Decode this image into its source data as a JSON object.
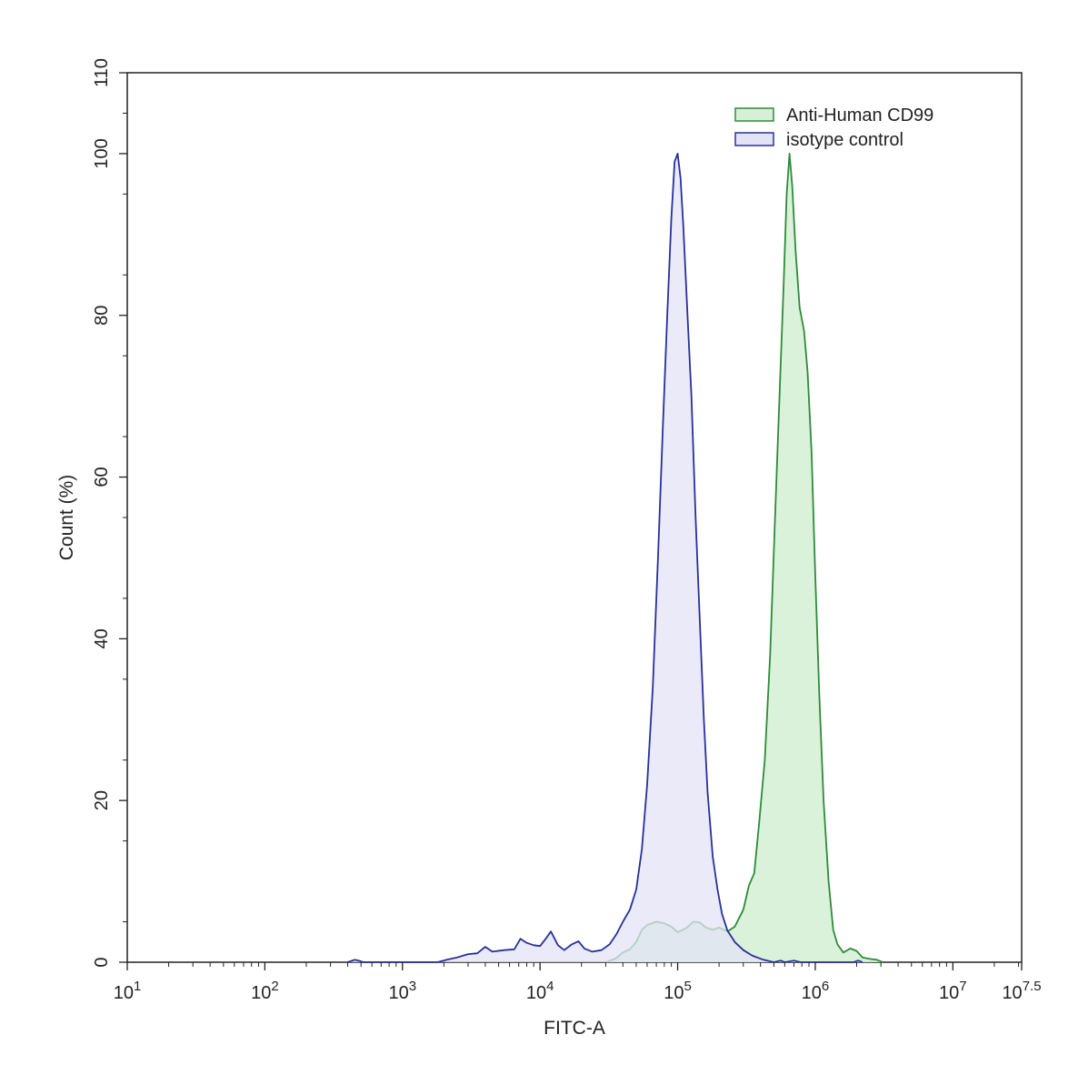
{
  "chart_data": {
    "type": "area",
    "title": "",
    "xlabel": "FITC-A",
    "ylabel": "Count  (%)",
    "x_scale": "log10",
    "xlim": [
      10,
      31622777
    ],
    "ylim": [
      0,
      110
    ],
    "x_ticks": [
      {
        "value": 10,
        "base": "10",
        "exp": "1"
      },
      {
        "value": 100,
        "base": "10",
        "exp": "2"
      },
      {
        "value": 1000,
        "base": "10",
        "exp": "3"
      },
      {
        "value": 10000,
        "base": "10",
        "exp": "4"
      },
      {
        "value": 100000,
        "base": "10",
        "exp": "5"
      },
      {
        "value": 1000000,
        "base": "10",
        "exp": "6"
      },
      {
        "value": 10000000,
        "base": "10",
        "exp": "7"
      },
      {
        "value": 31622777,
        "base": "10",
        "exp": "7.5"
      }
    ],
    "y_ticks": [
      "0",
      "20",
      "40",
      "60",
      "80",
      "100",
      "110"
    ],
    "grid": false,
    "legend_position": "top-right",
    "series": [
      {
        "name": "Anti-Human CD99",
        "line_color": "#2e8b3a",
        "fill_color": "#d6efd6",
        "points": [
          [
            30000,
            0
          ],
          [
            35000,
            0.4
          ],
          [
            40000,
            1.2
          ],
          [
            45000,
            1.6
          ],
          [
            50000,
            2.5
          ],
          [
            55000,
            4.0
          ],
          [
            60000,
            4.6
          ],
          [
            70000,
            5.0
          ],
          [
            80000,
            4.8
          ],
          [
            90000,
            4.4
          ],
          [
            100000,
            3.7
          ],
          [
            115000,
            4.2
          ],
          [
            130000,
            5.0
          ],
          [
            145000,
            4.9
          ],
          [
            160000,
            4.3
          ],
          [
            180000,
            4.0
          ],
          [
            200000,
            4.3
          ],
          [
            230000,
            3.8
          ],
          [
            260000,
            4.4
          ],
          [
            300000,
            6.5
          ],
          [
            330000,
            9.5
          ],
          [
            360000,
            11
          ],
          [
            390000,
            17
          ],
          [
            430000,
            25
          ],
          [
            470000,
            38
          ],
          [
            510000,
            55
          ],
          [
            550000,
            70
          ],
          [
            590000,
            84
          ],
          [
            620000,
            95
          ],
          [
            650000,
            100
          ],
          [
            680000,
            96
          ],
          [
            720000,
            88
          ],
          [
            770000,
            81
          ],
          [
            830000,
            78
          ],
          [
            880000,
            73
          ],
          [
            940000,
            63
          ],
          [
            1000000,
            48
          ],
          [
            1070000,
            33
          ],
          [
            1150000,
            20
          ],
          [
            1250000,
            10
          ],
          [
            1350000,
            4
          ],
          [
            1450000,
            2.2
          ],
          [
            1600000,
            1.2
          ],
          [
            1800000,
            1.7
          ],
          [
            2000000,
            1.4
          ],
          [
            2200000,
            0.6
          ],
          [
            2500000,
            0.4
          ],
          [
            2800000,
            0.3
          ],
          [
            3100000,
            0
          ]
        ]
      },
      {
        "name": "isotype control",
        "line_color": "#28309a",
        "fill_color": "#e3e3f6",
        "points": [
          [
            400,
            0
          ],
          [
            450,
            0.3
          ],
          [
            480,
            0.2
          ],
          [
            520,
            0
          ],
          [
            1800,
            0
          ],
          [
            2100,
            0.3
          ],
          [
            2500,
            0.6
          ],
          [
            3000,
            1.0
          ],
          [
            3500,
            1.1
          ],
          [
            4000,
            1.9
          ],
          [
            4500,
            1.3
          ],
          [
            5500,
            1.5
          ],
          [
            6500,
            1.6
          ],
          [
            7200,
            2.9
          ],
          [
            8000,
            2.4
          ],
          [
            9000,
            2.1
          ],
          [
            10000,
            2.0
          ],
          [
            11000,
            2.9
          ],
          [
            12000,
            3.8
          ],
          [
            13500,
            2.1
          ],
          [
            15000,
            1.5
          ],
          [
            17000,
            2.2
          ],
          [
            19000,
            2.6
          ],
          [
            21000,
            1.7
          ],
          [
            24000,
            1.3
          ],
          [
            28000,
            1.5
          ],
          [
            32000,
            2.2
          ],
          [
            36000,
            3.5
          ],
          [
            40000,
            5.0
          ],
          [
            45000,
            6.5
          ],
          [
            50000,
            9.0
          ],
          [
            55000,
            14
          ],
          [
            60000,
            22
          ],
          [
            66000,
            34
          ],
          [
            72000,
            50
          ],
          [
            78000,
            66
          ],
          [
            84000,
            80
          ],
          [
            90000,
            92
          ],
          [
            95000,
            99
          ],
          [
            100000,
            100
          ],
          [
            105000,
            97
          ],
          [
            110000,
            91
          ],
          [
            118000,
            80
          ],
          [
            126000,
            70
          ],
          [
            135000,
            55
          ],
          [
            145000,
            42
          ],
          [
            155000,
            30
          ],
          [
            165000,
            21
          ],
          [
            180000,
            13
          ],
          [
            195000,
            9
          ],
          [
            210000,
            6
          ],
          [
            230000,
            3.9
          ],
          [
            260000,
            2.5
          ],
          [
            300000,
            1.5
          ],
          [
            350000,
            0.8
          ],
          [
            420000,
            0.3
          ],
          [
            500000,
            0
          ],
          [
            560000,
            0.2
          ],
          [
            600000,
            0
          ],
          [
            700000,
            0.2
          ],
          [
            780000,
            0
          ],
          [
            1900000,
            0
          ],
          [
            2050000,
            0.2
          ],
          [
            2200000,
            0
          ]
        ]
      }
    ]
  }
}
